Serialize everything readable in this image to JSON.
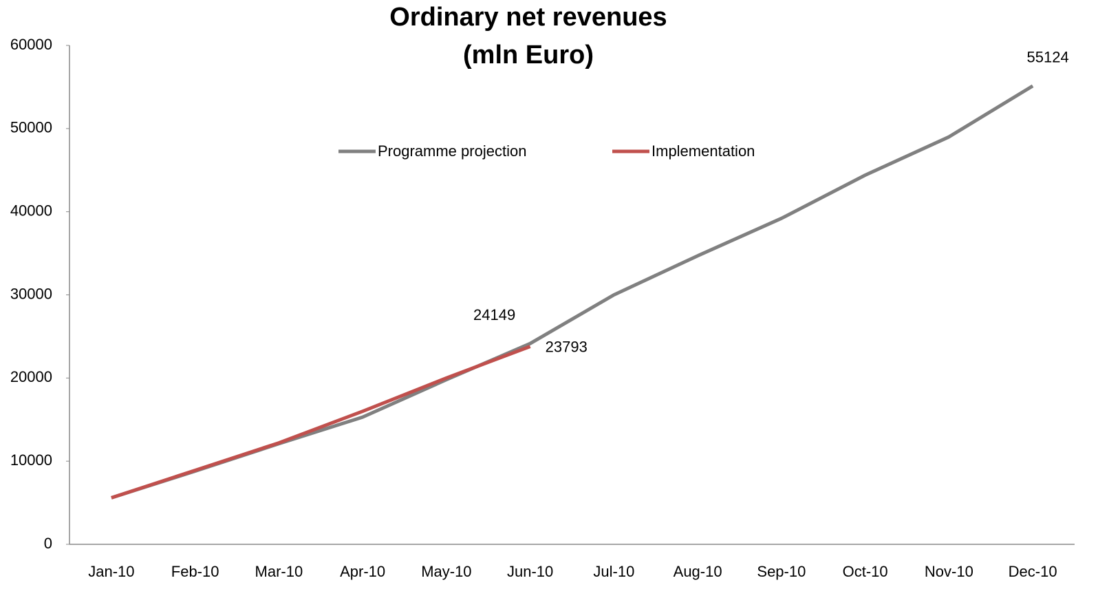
{
  "chart_data": {
    "type": "line",
    "title": "Ordinary net revenues",
    "subtitle": "(mln Euro)",
    "categories": [
      "Jan-10",
      "Feb-10",
      "Mar-10",
      "Apr-10",
      "May-10",
      "Jun-10",
      "Jul-10",
      "Aug-10",
      "Sep-10",
      "Oct-10",
      "Nov-10",
      "Dec-10"
    ],
    "series": [
      {
        "name": "Programme projection",
        "color": "#808080",
        "values": [
          5600,
          8800,
          12100,
          15300,
          19800,
          24149,
          30000,
          34700,
          39200,
          44400,
          49000,
          55124
        ],
        "data_labels": [
          5,
          11
        ]
      },
      {
        "name": "Implementation",
        "color": "#c0504d",
        "values": [
          5600,
          8900,
          12200,
          16000,
          20000,
          23793,
          null,
          null,
          null,
          null,
          null,
          null
        ],
        "data_labels": [
          5
        ]
      }
    ],
    "ylim": [
      0,
      60000
    ],
    "yticks": [
      0,
      10000,
      20000,
      30000,
      40000,
      50000,
      60000
    ],
    "grid": false,
    "legend": "top"
  }
}
